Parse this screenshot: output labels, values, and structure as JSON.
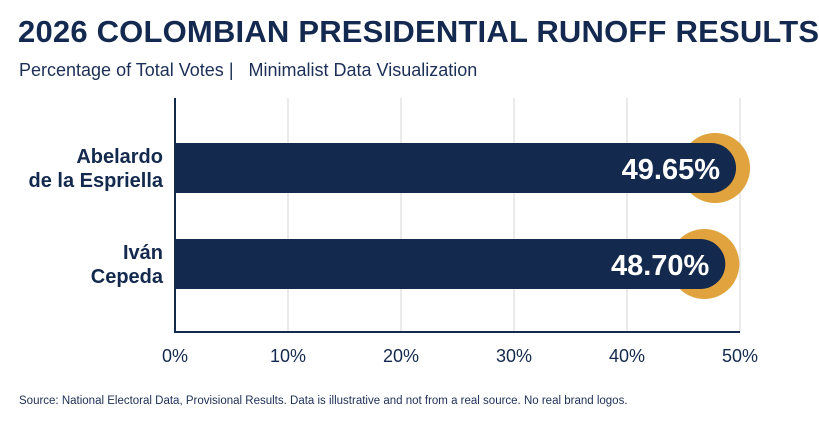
{
  "header": {
    "title": "2026 COLOMBIAN PRESIDENTIAL RUNOFF RESULTS",
    "subtitle": "Percentage of Total Votes |   Minimalist Data Visualization"
  },
  "footer": {
    "source": "Source: National Electoral Data, Provisional Results. Data is illustrative and not from a real source. No real brand logos."
  },
  "colors": {
    "bar": "#13294e",
    "accent": "#e1a33d",
    "grid": "#d6d6d6",
    "axis": "#13294e",
    "text": "#13294e",
    "bar_label": "#ffffff"
  },
  "chart_data": {
    "type": "bar",
    "orientation": "horizontal",
    "title": "2026 COLOMBIAN PRESIDENTIAL RUNOFF RESULTS",
    "subtitle": "Percentage of Total Votes |   Minimalist Data Visualization",
    "categories": [
      [
        "Abelardo",
        "de la Espriella"
      ],
      [
        "Iván",
        "Cepeda"
      ]
    ],
    "values": [
      49.65,
      48.7
    ],
    "value_labels": [
      "49.65%",
      "48.70%"
    ],
    "xlim": [
      0,
      50
    ],
    "xticks": [
      0,
      10,
      20,
      30,
      40,
      50
    ],
    "xtick_labels": [
      "0%",
      "10%",
      "20%",
      "30%",
      "40%",
      "50%"
    ],
    "xlabel": "",
    "ylabel": "",
    "grid": "vertical"
  }
}
